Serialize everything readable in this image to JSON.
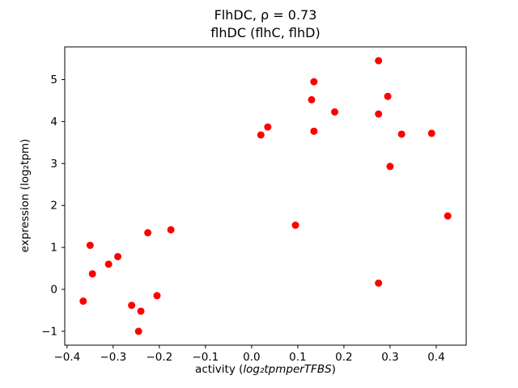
{
  "title": {
    "line1": "FlhDC, ρ = 0.73",
    "line2": "flhDC (flhC, flhD)"
  },
  "chart_data": {
    "type": "scatter",
    "title": "FlhDC, ρ = 0.73 / flhDC (flhC, flhD)",
    "xlabel": "activity (log₂tpmperTFBS)",
    "ylabel": "expression (log₂tpm)",
    "legend": "none",
    "grid": false,
    "marker_color": "#ff0000",
    "marker_radius": 4.5,
    "xlim": [
      -0.405,
      0.465
    ],
    "ylim": [
      -1.33,
      5.78
    ],
    "xticks": [
      -0.4,
      -0.3,
      -0.2,
      -0.1,
      0.0,
      0.1,
      0.2,
      0.3,
      0.4
    ],
    "xtick_labels": [
      "−0.4",
      "−0.3",
      "−0.2",
      "−0.1",
      "0.0",
      "0.1",
      "0.2",
      "0.3",
      "0.4"
    ],
    "yticks": [
      -1,
      0,
      1,
      2,
      3,
      4,
      5
    ],
    "ytick_labels": [
      "−1",
      "0",
      "1",
      "2",
      "3",
      "4",
      "5"
    ],
    "points": [
      [
        -0.365,
        -0.28
      ],
      [
        -0.35,
        1.05
      ],
      [
        -0.345,
        0.37
      ],
      [
        -0.31,
        0.6
      ],
      [
        -0.29,
        0.78
      ],
      [
        -0.26,
        -0.38
      ],
      [
        -0.24,
        -0.52
      ],
      [
        -0.245,
        -1.0
      ],
      [
        -0.225,
        1.35
      ],
      [
        -0.205,
        -0.15
      ],
      [
        -0.175,
        1.42
      ],
      [
        0.02,
        3.68
      ],
      [
        0.035,
        3.87
      ],
      [
        0.095,
        1.53
      ],
      [
        0.13,
        4.52
      ],
      [
        0.135,
        4.95
      ],
      [
        0.135,
        3.77
      ],
      [
        0.18,
        4.23
      ],
      [
        0.275,
        5.45
      ],
      [
        0.275,
        4.18
      ],
      [
        0.275,
        0.15
      ],
      [
        0.295,
        4.6
      ],
      [
        0.3,
        2.93
      ],
      [
        0.325,
        3.7
      ],
      [
        0.39,
        3.72
      ],
      [
        0.425,
        1.75
      ]
    ]
  }
}
